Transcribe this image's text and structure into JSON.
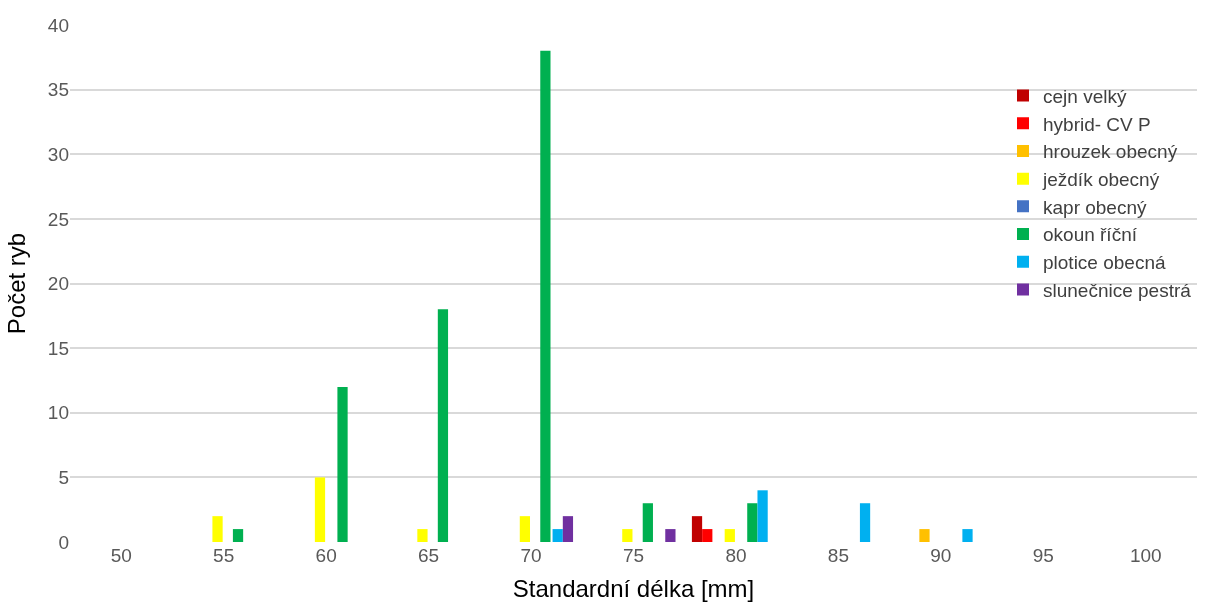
{
  "chart_data": {
    "type": "bar",
    "xlabel": "Standardní délka [mm]",
    "ylabel": "Počet ryb",
    "xlim": [
      47.5,
      102.5
    ],
    "xticks": [
      50,
      55,
      60,
      65,
      70,
      75,
      80,
      85,
      90,
      95,
      100
    ],
    "ylim": [
      0,
      40
    ],
    "yticks": [
      0,
      5,
      10,
      15,
      20,
      25,
      30,
      35,
      40
    ],
    "grid": "y",
    "legend": "right",
    "series": [
      {
        "name": "cejn velký",
        "color": "#c00000",
        "x": [
          78.1
        ],
        "values": [
          2
        ]
      },
      {
        "name": "hybrid- CV P",
        "color": "#ff0000",
        "x": [
          78.6
        ],
        "values": [
          1
        ]
      },
      {
        "name": "hrouzek obecný",
        "color": "#ffc000",
        "x": [
          89.2
        ],
        "values": [
          1
        ]
      },
      {
        "name": "ježdík obecný",
        "color": "#ffff00",
        "x": [
          54.7,
          59.7,
          64.7,
          69.7,
          74.7,
          79.7
        ],
        "values": [
          2,
          5,
          1,
          2,
          1,
          1
        ]
      },
      {
        "name": "kapr obecný",
        "color": "#4472c4"
      },
      {
        "name": "okoun říční",
        "color": "#00b050",
        "x": [
          55.7,
          60.8,
          65.7,
          70.7,
          75.7,
          80.8
        ],
        "values": [
          1,
          12,
          18,
          38,
          3,
          3
        ]
      },
      {
        "name": "plotice obecná",
        "color": "#00b0f0",
        "x": [
          71.3,
          81.3,
          86.3,
          91.3
        ],
        "values": [
          1,
          4,
          3,
          1
        ]
      },
      {
        "name": "slunečnice pestrá",
        "color": "#7030a0",
        "x": [
          71.8,
          76.8
        ],
        "values": [
          2,
          1
        ]
      }
    ]
  }
}
